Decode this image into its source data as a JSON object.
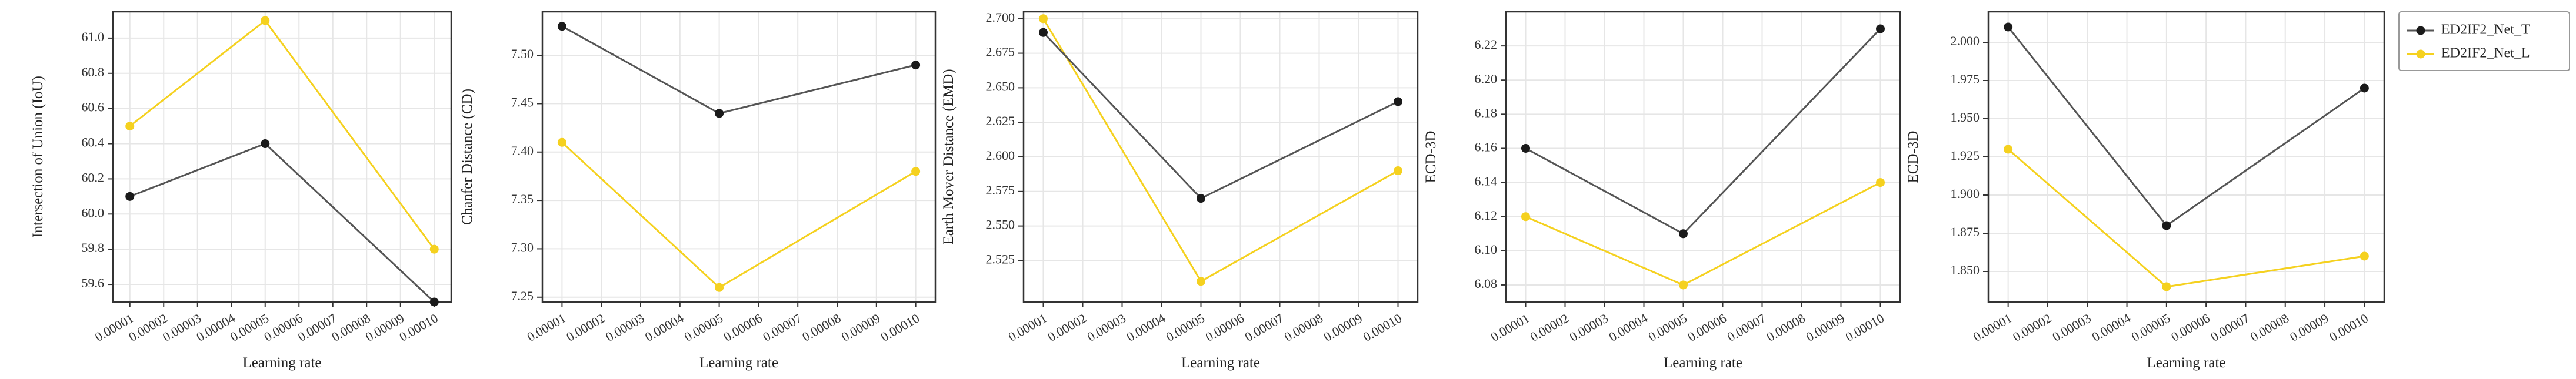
{
  "colors": {
    "series_t": "#1a1a1a",
    "series_l": "#f5d11f",
    "line_t": "#555555",
    "line_l": "#f5d11f",
    "grid": "#e6e6e6",
    "frame": "#333333"
  },
  "legend": {
    "placement": "right",
    "entries": [
      "ED2IF2_Net_T",
      "ED2IF2_Net_L"
    ]
  },
  "chart_data": [
    {
      "type": "line",
      "xlabel": "Learning rate",
      "ylabel": "Intersection of Union (IoU)",
      "x": [
        1e-05,
        5e-05,
        0.0001
      ],
      "xticks": [
        "0.00001",
        "0.00002",
        "0.00003",
        "0.00004",
        "0.00005",
        "0.00006",
        "0.00007",
        "0.00008",
        "0.00009",
        "0.00010"
      ],
      "xlim": [
        5e-06,
        0.000105
      ],
      "ylim": [
        59.5,
        61.15
      ],
      "yticks": [
        "59.6",
        "59.8",
        "60.0",
        "60.2",
        "60.4",
        "60.6",
        "60.8",
        "61.0"
      ],
      "grid": true,
      "series": [
        {
          "name": "ED2IF2_Net_T",
          "values": [
            60.1,
            60.4,
            59.5
          ]
        },
        {
          "name": "ED2IF2_Net_L",
          "values": [
            60.5,
            61.1,
            59.8
          ]
        }
      ]
    },
    {
      "type": "line",
      "xlabel": "Learning rate",
      "ylabel": "Chanfer Distance (CD)",
      "x": [
        1e-05,
        5e-05,
        0.0001
      ],
      "xticks": [
        "0.00001",
        "0.00002",
        "0.00003",
        "0.00004",
        "0.00005",
        "0.00006",
        "0.00007",
        "0.00008",
        "0.00009",
        "0.00010"
      ],
      "xlim": [
        5e-06,
        0.000105
      ],
      "ylim": [
        7.245,
        7.545
      ],
      "yticks": [
        "7.25",
        "7.30",
        "7.35",
        "7.40",
        "7.45",
        "7.50"
      ],
      "grid": true,
      "series": [
        {
          "name": "ED2IF2_Net_T",
          "values": [
            7.53,
            7.44,
            7.49
          ]
        },
        {
          "name": "ED2IF2_Net_L",
          "values": [
            7.41,
            7.26,
            7.38
          ]
        }
      ]
    },
    {
      "type": "line",
      "xlabel": "Learning rate",
      "ylabel": "Earth Mover Distance (EMD)",
      "x": [
        1e-05,
        5e-05,
        0.0001
      ],
      "xticks": [
        "0.00001",
        "0.00002",
        "0.00003",
        "0.00004",
        "0.00005",
        "0.00006",
        "0.00007",
        "0.00008",
        "0.00009",
        "0.00010"
      ],
      "xlim": [
        5e-06,
        0.000105
      ],
      "ylim": [
        2.495,
        2.705
      ],
      "yticks": [
        "2.525",
        "2.550",
        "2.575",
        "2.600",
        "2.625",
        "2.650",
        "2.675",
        "2.700"
      ],
      "grid": true,
      "series": [
        {
          "name": "ED2IF2_Net_T",
          "values": [
            2.69,
            2.57,
            2.64
          ]
        },
        {
          "name": "ED2IF2_Net_L",
          "values": [
            2.7,
            2.51,
            2.59
          ]
        }
      ]
    },
    {
      "type": "line",
      "xlabel": "Learning rate",
      "ylabel": "ECD-3D",
      "x": [
        1e-05,
        5e-05,
        0.0001
      ],
      "xticks": [
        "0.00001",
        "0.00002",
        "0.00003",
        "0.00004",
        "0.00005",
        "0.00006",
        "0.00007",
        "0.00008",
        "0.00009",
        "0.00010"
      ],
      "xlim": [
        5e-06,
        0.000105
      ],
      "ylim": [
        6.07,
        6.24
      ],
      "yticks": [
        "6.08",
        "6.10",
        "6.12",
        "6.14",
        "6.16",
        "6.18",
        "6.20",
        "6.22"
      ],
      "grid": true,
      "series": [
        {
          "name": "ED2IF2_Net_T",
          "values": [
            6.16,
            6.11,
            6.23
          ]
        },
        {
          "name": "ED2IF2_Net_L",
          "values": [
            6.12,
            6.08,
            6.14
          ]
        }
      ]
    },
    {
      "type": "line",
      "xlabel": "Learning rate",
      "ylabel": "ECD-3D",
      "x": [
        1e-05,
        5e-05,
        0.0001
      ],
      "xticks": [
        "0.00001",
        "0.00002",
        "0.00003",
        "0.00004",
        "0.00005",
        "0.00006",
        "0.00007",
        "0.00008",
        "0.00009",
        "0.00010"
      ],
      "xlim": [
        5e-06,
        0.000105
      ],
      "ylim": [
        1.83,
        2.02
      ],
      "yticks": [
        "1.850",
        "1.875",
        "1.900",
        "1.925",
        "1.950",
        "1.975",
        "2.000"
      ],
      "grid": true,
      "series": [
        {
          "name": "ED2IF2_Net_T",
          "values": [
            2.01,
            1.88,
            1.97
          ]
        },
        {
          "name": "ED2IF2_Net_L",
          "values": [
            1.93,
            1.84,
            1.86
          ]
        }
      ]
    }
  ]
}
